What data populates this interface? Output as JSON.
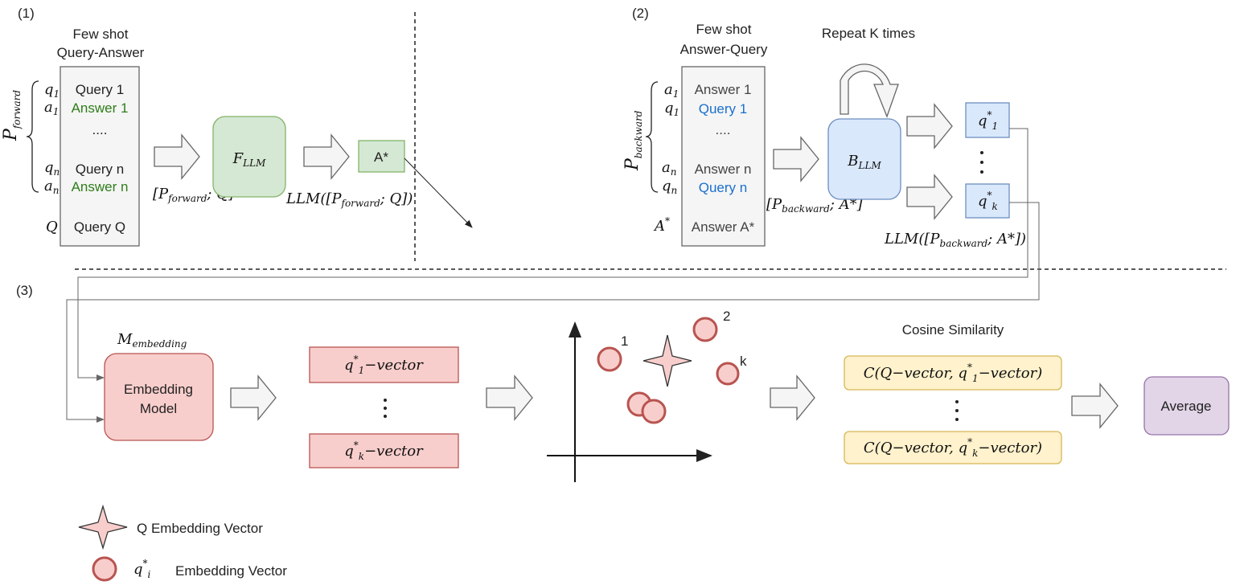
{
  "colors": {
    "green_fill": "#d5e8d4",
    "green_stroke": "#82b366",
    "green_text": "#2e7d1a",
    "blue_fill": "#dae8fc",
    "blue_stroke": "#6c8ebf",
    "blue_text": "#1a6fcf",
    "red_fill": "#f8cecc",
    "red_stroke": "#b85450",
    "yellow_fill": "#fff2cc",
    "yellow_stroke": "#d6b656",
    "purple_fill": "#e1d5e7",
    "purple_stroke": "#9673a6",
    "gray_fill": "#f5f5f5",
    "gray_stroke": "#666666"
  },
  "section1": {
    "marker": "(1)",
    "title_line1": "Few shot",
    "title_line2": "Query-Answer",
    "prompt_label": {
      "base": "P",
      "sub": "forward"
    },
    "row_labels": {
      "q1": "q",
      "q1_sub": "1",
      "a1": "a",
      "a1_sub": "1",
      "qn": "q",
      "qn_sub": "n",
      "an": "a",
      "an_sub": "n",
      "Q": "Q"
    },
    "rows": [
      "Query 1",
      "Answer 1",
      "....",
      "Query n",
      "Answer n",
      "Query Q"
    ],
    "input_label": {
      "open": "[",
      "base": "P",
      "sub": "forward",
      "rest": "; Q]"
    },
    "model": {
      "base": "F",
      "sub": "LLM"
    },
    "output_label": {
      "open": "LLM([",
      "base": "P",
      "sub": "forward",
      "rest": "; Q])"
    },
    "answer_box": "A*"
  },
  "section2": {
    "marker": "(2)",
    "title_line1": "Few shot",
    "title_line2": "Answer-Query",
    "prompt_label": {
      "base": "P",
      "sub": "backward"
    },
    "row_labels": {
      "a1": "a",
      "a1_sub": "1",
      "q1": "q",
      "q1_sub": "1",
      "an": "a",
      "an_sub": "n",
      "qn": "q",
      "qn_sub": "n",
      "A": "A",
      "A_sup": "*"
    },
    "rows": [
      "Answer 1",
      "Query 1",
      "....",
      "Answer n",
      "Query n",
      "Answer A*"
    ],
    "input_label": {
      "open": "[",
      "base": "P",
      "sub": "backward",
      "rest": "; A*]"
    },
    "repeat_label": "Repeat K times",
    "model": {
      "base": "B",
      "sub": "LLM"
    },
    "outputs": [
      {
        "base": "q",
        "sup": "*",
        "sub": "1"
      },
      {
        "base": "q",
        "sup": "*",
        "sub": "k"
      }
    ],
    "output_label": {
      "open": "LLM([",
      "base": "P",
      "sub": "backward",
      "rest": "; A*])"
    }
  },
  "section3": {
    "marker": "(3)",
    "model_label": {
      "base": "M",
      "sub": "embedding"
    },
    "model_line1": "Embedding",
    "model_line2": "Model",
    "vectors": [
      {
        "base": "q",
        "sub": "1",
        "sup": "*",
        "rest": "−vector"
      },
      {
        "base": "q",
        "sub": "k",
        "sup": "*",
        "rest": "−vector"
      }
    ],
    "point_labels": [
      "1",
      "2",
      "k"
    ],
    "similarity_title": "Cosine Similarity",
    "similarities": [
      {
        "open": "C(Q−vector, q",
        "sub": "1",
        "sup": "*",
        "rest": "−vector)"
      },
      {
        "open": "C(Q−vector, q",
        "sub": "k",
        "sup": "*",
        "rest": "−vector)"
      }
    ],
    "average_label": "Average"
  },
  "legend": {
    "star_text": "Q  Embedding Vector",
    "circle_symbol": {
      "base": "q",
      "sub": "i",
      "sup": "*"
    },
    "circle_text": "Embedding Vector"
  }
}
